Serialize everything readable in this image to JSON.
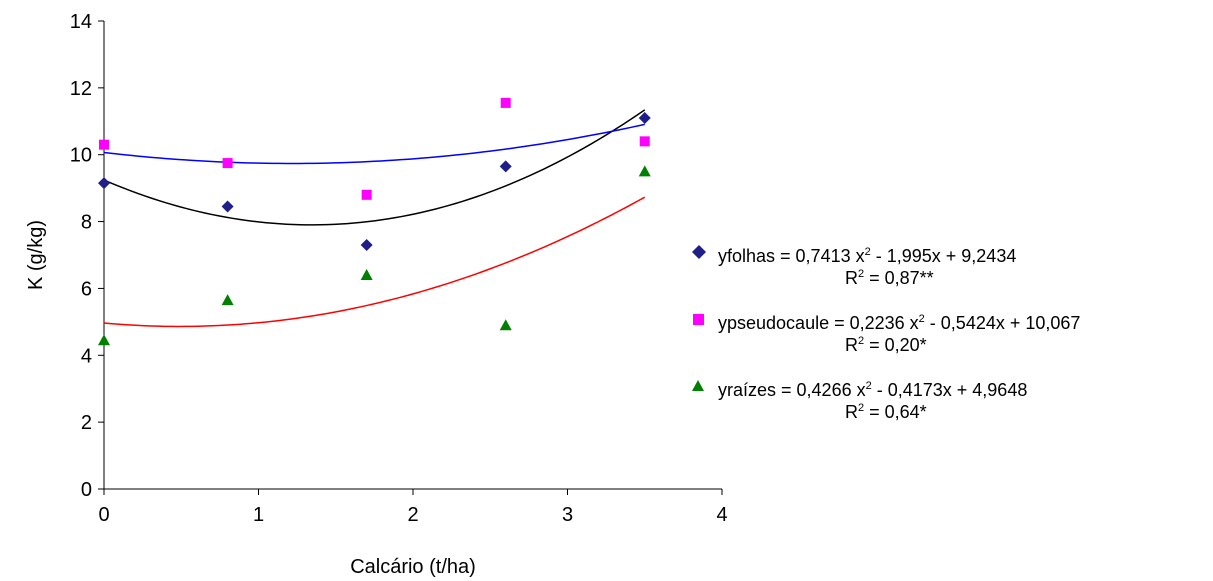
{
  "chart_data": {
    "type": "scatter",
    "xlabel": "Calcário (t/ha)",
    "ylabel": "K (g/kg)",
    "xlim": [
      0,
      4
    ],
    "ylim": [
      0,
      14
    ],
    "x_ticks": [
      "0",
      "1",
      "2",
      "3",
      "4"
    ],
    "y_ticks": [
      "0",
      "2",
      "4",
      "6",
      "8",
      "10",
      "12",
      "14"
    ],
    "grid": false,
    "legend_position": "right",
    "series": [
      {
        "key": "folhas",
        "marker": "diamond",
        "marker_color": "#1f1f8a",
        "trend_color": "#000000",
        "x": [
          0,
          0.8,
          1.7,
          2.6,
          3.5
        ],
        "y": [
          9.15,
          8.45,
          7.3,
          9.65,
          11.1
        ],
        "coeffs": [
          0.7413,
          -1.995,
          9.2434
        ],
        "legend": {
          "lhs": "yfolhas = ",
          "c2": " 0,7413 x",
          "rest": " - 1,995x + 9,2434",
          "r2_label": "R",
          "r2_value": " = 0,87**"
        }
      },
      {
        "key": "pseudocaule",
        "marker": "square",
        "marker_color": "#ff00ff",
        "trend_color": "#0000ff",
        "x": [
          0,
          0.8,
          1.7,
          2.6,
          3.5
        ],
        "y": [
          10.3,
          9.75,
          8.8,
          11.55,
          10.4
        ],
        "coeffs": [
          0.2236,
          -0.5424,
          10.067
        ],
        "legend": {
          "lhs": "ypseudocaule = ",
          "c2": "0,2236 x",
          "rest": " - 0,5424x + 10,067",
          "r2_label": "R",
          "r2_value": " = 0,20*"
        }
      },
      {
        "key": "raizes",
        "marker": "triangle",
        "marker_color": "#008000",
        "trend_color": "#ff0000",
        "x": [
          0,
          0.8,
          1.7,
          2.6,
          3.5
        ],
        "y": [
          4.45,
          5.65,
          6.4,
          4.9,
          9.5
        ],
        "coeffs": [
          0.4266,
          -0.4173,
          4.9648
        ],
        "legend": {
          "lhs": "yraízes = ",
          "c2": "0,4266 x",
          "rest": " - 0,4173x + 4,9648",
          "r2_label": "R",
          "r2_value": " = 0,64*"
        }
      }
    ],
    "superscript": "2"
  }
}
